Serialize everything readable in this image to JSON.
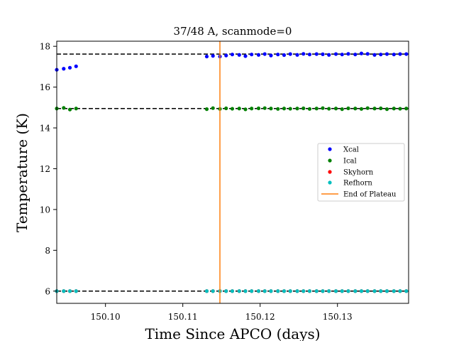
{
  "chart_data": {
    "type": "scatter",
    "title": "37/48 A, scanmode=0",
    "xlabel": "Time Since APCO (days)",
    "ylabel": "Temperature (K)",
    "xlim": [
      150.0937,
      150.1392
    ],
    "ylim": [
      5.4,
      18.25
    ],
    "xticks": [
      150.1,
      150.11,
      150.12,
      150.13
    ],
    "xtick_labels": [
      "150.10",
      "150.11",
      "150.12",
      "150.13"
    ],
    "yticks": [
      6,
      8,
      10,
      12,
      14,
      16,
      18
    ],
    "ytick_labels": [
      "6",
      "8",
      "10",
      "12",
      "14",
      "16",
      "18"
    ],
    "grid": false,
    "legend_position": "center-right",
    "reference_lines": [
      17.62,
      14.95,
      6.0
    ],
    "vertical_line": {
      "name": "End of Plateau",
      "x": 150.1148,
      "color": "#ff7f0e"
    },
    "series": [
      {
        "name": "Xcal",
        "color": "#0000ff",
        "x": [
          150.0937,
          150.0946,
          150.0954,
          150.0962,
          150.1131,
          150.1139,
          150.1148,
          150.1156,
          150.1164,
          150.1173,
          150.1181,
          150.1189,
          150.1198,
          150.1206,
          150.1214,
          150.1223,
          150.1231,
          150.1239,
          150.1248,
          150.1256,
          150.1264,
          150.1273,
          150.1281,
          150.1289,
          150.1298,
          150.1306,
          150.1314,
          150.1323,
          150.1331,
          150.1339,
          150.1348,
          150.1356,
          150.1364,
          150.1373,
          150.1381,
          150.1389
        ],
        "y": [
          16.85,
          16.9,
          16.95,
          17.02,
          17.5,
          17.53,
          17.5,
          17.55,
          17.6,
          17.58,
          17.52,
          17.6,
          17.58,
          17.62,
          17.55,
          17.6,
          17.57,
          17.62,
          17.58,
          17.63,
          17.6,
          17.62,
          17.61,
          17.58,
          17.62,
          17.6,
          17.63,
          17.6,
          17.65,
          17.63,
          17.58,
          17.6,
          17.62,
          17.6,
          17.62,
          17.62
        ]
      },
      {
        "name": "Ical",
        "color": "#008000",
        "x": [
          150.0937,
          150.0946,
          150.0954,
          150.0962,
          150.1131,
          150.1139,
          150.1148,
          150.1156,
          150.1164,
          150.1173,
          150.1181,
          150.1189,
          150.1198,
          150.1206,
          150.1214,
          150.1223,
          150.1231,
          150.1239,
          150.1248,
          150.1256,
          150.1264,
          150.1273,
          150.1281,
          150.1289,
          150.1298,
          150.1306,
          150.1314,
          150.1323,
          150.1331,
          150.1339,
          150.1348,
          150.1356,
          150.1364,
          150.1373,
          150.1381,
          150.1389
        ],
        "y": [
          14.95,
          14.98,
          14.9,
          14.95,
          14.92,
          14.97,
          14.93,
          14.96,
          14.94,
          14.95,
          14.91,
          14.95,
          14.96,
          14.97,
          14.95,
          14.93,
          14.95,
          14.94,
          14.95,
          14.96,
          14.93,
          14.95,
          14.97,
          14.94,
          14.95,
          14.92,
          14.96,
          14.95,
          14.93,
          14.97,
          14.95,
          14.96,
          14.92,
          14.95,
          14.94,
          14.95
        ]
      },
      {
        "name": "Skyhorn",
        "color": "#ff0000",
        "x": [
          150.0937,
          150.0946,
          150.0954,
          150.0962,
          150.1131,
          150.1139,
          150.1148,
          150.1156,
          150.1164,
          150.1173,
          150.1181,
          150.1189,
          150.1198,
          150.1206,
          150.1214,
          150.1223,
          150.1231,
          150.1239,
          150.1248,
          150.1256,
          150.1264,
          150.1273,
          150.1281,
          150.1289,
          150.1298,
          150.1306,
          150.1314,
          150.1323,
          150.1331,
          150.1339,
          150.1348,
          150.1356,
          150.1364,
          150.1373,
          150.1381,
          150.1389
        ],
        "y": [
          6.0,
          6.0,
          6.0,
          6.0,
          6.0,
          6.0,
          6.0,
          6.0,
          6.0,
          6.0,
          6.0,
          6.0,
          6.0,
          6.0,
          6.0,
          6.0,
          6.0,
          6.0,
          6.0,
          6.0,
          6.0,
          6.0,
          6.0,
          6.0,
          6.0,
          6.0,
          6.0,
          6.0,
          6.0,
          6.0,
          6.0,
          6.0,
          6.0,
          6.0,
          6.0,
          6.0
        ]
      },
      {
        "name": "Refhorn",
        "color": "#00bfbf",
        "x": [
          150.0937,
          150.0946,
          150.0954,
          150.0962,
          150.1131,
          150.1139,
          150.1148,
          150.1156,
          150.1164,
          150.1173,
          150.1181,
          150.1189,
          150.1198,
          150.1206,
          150.1214,
          150.1223,
          150.1231,
          150.1239,
          150.1248,
          150.1256,
          150.1264,
          150.1273,
          150.1281,
          150.1289,
          150.1298,
          150.1306,
          150.1314,
          150.1323,
          150.1331,
          150.1339,
          150.1348,
          150.1356,
          150.1364,
          150.1373,
          150.1381,
          150.1389
        ],
        "y": [
          6.0,
          6.0,
          6.0,
          6.0,
          6.0,
          6.0,
          6.0,
          6.0,
          6.0,
          6.0,
          6.0,
          6.0,
          6.0,
          6.0,
          6.0,
          6.0,
          6.0,
          6.0,
          6.0,
          6.0,
          6.0,
          6.0,
          6.0,
          6.0,
          6.0,
          6.0,
          6.0,
          6.0,
          6.0,
          6.0,
          6.0,
          6.0,
          6.0,
          6.0,
          6.0,
          6.0
        ]
      }
    ]
  }
}
